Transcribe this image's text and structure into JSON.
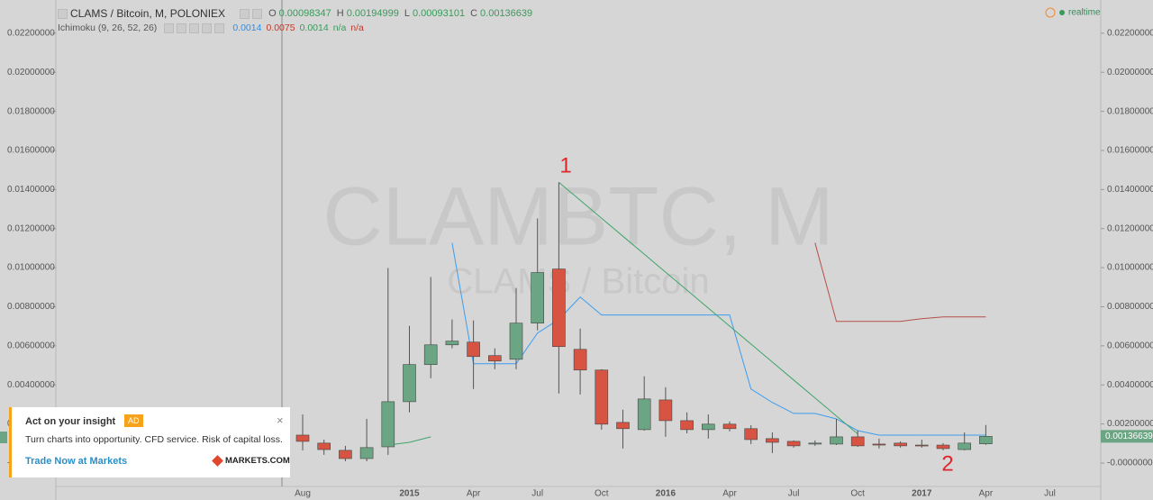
{
  "chart_data": {
    "type": "candlestick",
    "title": "CLAMS / Bitcoin, M, POLONIEX",
    "watermark": "CLAMBTC, M",
    "watermark_subtitle": "CLAMS / Bitcoin",
    "ohlc_legend": [
      {
        "key": "O",
        "value": 0.00098347
      },
      {
        "key": "H",
        "value": 0.00194999
      },
      {
        "key": "L",
        "value": 0.00093101
      },
      {
        "key": "C",
        "value": 0.00136639
      }
    ],
    "indicator": "Ichimoku (9, 26, 52, 26)",
    "indicator_readouts": [
      {
        "text": 0.0014,
        "color": "#2f8fe8"
      },
      {
        "text": 0.0075,
        "color": "#c0392b"
      },
      {
        "text": 0.0014,
        "color": "#3a9a5c"
      },
      {
        "text": "n/a",
        "color": "#3a9a5c"
      },
      {
        "text": "n/a",
        "color": "#c0392b"
      }
    ],
    "status": "realtime",
    "last_price": 0.00136639,
    "annotations": [
      "1",
      "2"
    ],
    "categories": [
      "Aug",
      null,
      null,
      null,
      null,
      "2015",
      null,
      null,
      "Apr",
      null,
      null,
      "Jul",
      null,
      null,
      "Oct",
      null,
      null,
      "2016",
      null,
      null,
      "Apr",
      null,
      null,
      "Jul",
      null,
      null,
      "Oct",
      null,
      null,
      "2017",
      null,
      null,
      "Apr",
      null,
      null,
      "Jul"
    ],
    "open": [
      0.00143,
      0.00102,
      0.00065,
      0.00023,
      0.00083,
      0.00314,
      0.00504,
      0.00605,
      0.00619,
      0.0055,
      0.00531,
      0.00716,
      0.00993,
      0.00582,
      0.00476,
      0.00208,
      0.00171,
      0.00323,
      0.00217,
      0.00171,
      0.00199,
      0.00176,
      0.00125,
      0.00111,
      0.00097,
      0.00097,
      0.00134,
      0.00097,
      0.00102,
      0.00092,
      0.00092,
      0.00069,
      0.00098347,
      null,
      null,
      null
    ],
    "high": [
      0.00249,
      0.0012,
      0.00088,
      0.00226,
      0.00998,
      0.00702,
      0.00952,
      0.00735,
      0.0073,
      0.00587,
      0.00896,
      0.01252,
      0.01437,
      0.00688,
      0.0048,
      0.00273,
      0.00444,
      0.00388,
      0.00259,
      0.00249,
      0.00213,
      0.00194,
      0.00157,
      0.00116,
      0.00116,
      0.00226,
      0.00166,
      0.00125,
      0.00111,
      0.0012,
      0.00102,
      0.00157,
      0.00194999,
      null,
      null,
      null
    ],
    "low": [
      0.00065,
      0.00042,
      9e-05,
      9e-05,
      0.00042,
      0.00259,
      0.00434,
      0.00587,
      0.00379,
      0.0048,
      0.0048,
      0.00679,
      0.00356,
      0.00351,
      0.00171,
      0.00074,
      0.00166,
      0.00134,
      0.00152,
      0.00125,
      0.00162,
      0.00097,
      0.00051,
      0.00079,
      0.00088,
      0.00092,
      0.00083,
      0.00074,
      0.00079,
      0.00079,
      0.00065,
      0.00065,
      0.00093101,
      null,
      null,
      null
    ],
    "close": [
      0.00111,
      0.00069,
      0.00023,
      0.00079,
      0.00314,
      0.00504,
      0.00605,
      0.00624,
      0.00545,
      0.00522,
      0.00716,
      0.00975,
      0.00596,
      0.00476,
      0.00199,
      0.00176,
      0.00328,
      0.00217,
      0.00171,
      0.00199,
      0.00176,
      0.0012,
      0.00106,
      0.00088,
      0.00102,
      0.00134,
      0.00088,
      0.00092,
      0.00088,
      0.00088,
      0.00074,
      0.00102,
      0.00136639,
      null,
      null,
      null
    ],
    "up_color": "#6ba583",
    "down_color": "#d75442",
    "lines": [
      {
        "color": "#3d9cf0",
        "values": [
          null,
          null,
          null,
          null,
          null,
          null,
          null,
          0.01127,
          0.00508,
          0.00508,
          0.00508,
          0.00665,
          0.00735,
          0.0085,
          0.00758,
          0.00758,
          0.00758,
          0.00758,
          0.00758,
          0.00758,
          0.00758,
          0.00379,
          0.0031,
          0.00254,
          0.00254,
          0.00226,
          0.00166,
          0.00143,
          0.00143,
          0.00143,
          0.00143,
          0.00143,
          0.00143,
          null,
          null,
          null
        ]
      },
      {
        "color": "#b5504a",
        "values": [
          null,
          null,
          null,
          null,
          null,
          null,
          null,
          null,
          null,
          null,
          null,
          null,
          null,
          null,
          null,
          null,
          null,
          null,
          null,
          null,
          null,
          null,
          null,
          null,
          0.01127,
          0.00725,
          0.00725,
          0.00725,
          0.00725,
          0.00739,
          0.00748,
          0.00748,
          0.00748,
          null,
          null,
          null
        ]
      },
      {
        "color": "#3ea56a",
        "values": [
          null,
          null,
          null,
          null,
          0.00092,
          0.00106,
          0.00134,
          null,
          null,
          null,
          null,
          null,
          0.01437,
          0.01345,
          0.01253,
          0.01161,
          0.01069,
          0.00977,
          0.00885,
          0.00793,
          0.00701,
          0.00609,
          0.00517,
          0.00425,
          0.00333,
          0.00241,
          0.00149,
          null,
          null,
          null,
          null,
          null,
          null,
          null,
          null,
          null
        ]
      }
    ],
    "ylim": [
      -0.0012,
      0.0237
    ],
    "yticks": [
      {
        "value": 0.022,
        "label": "0.02200000"
      },
      {
        "value": 0.02,
        "label": "0.02000000"
      },
      {
        "value": 0.018,
        "label": "0.01800000"
      },
      {
        "value": 0.016,
        "label": "0.01600000"
      },
      {
        "value": 0.014,
        "label": "0.01400000"
      },
      {
        "value": 0.012,
        "label": "0.01200000"
      },
      {
        "value": 0.01,
        "label": "0.01000000"
      },
      {
        "value": 0.008,
        "label": "0.00800000"
      },
      {
        "value": 0.006,
        "label": "0.00600000"
      },
      {
        "value": 0.004,
        "label": "0.00400000"
      },
      {
        "value": 0.002,
        "label": "0.00200000"
      },
      {
        "value": 0,
        "label": "-0.0000000"
      }
    ],
    "grid": false
  },
  "ad": {
    "title": "Act on your insight",
    "badge": "AD",
    "close": "×",
    "text": "Turn charts into opportunity. CFD service. Risk of capital loss.",
    "link": "Trade Now at Markets",
    "brand": "MARKETS.COM"
  }
}
